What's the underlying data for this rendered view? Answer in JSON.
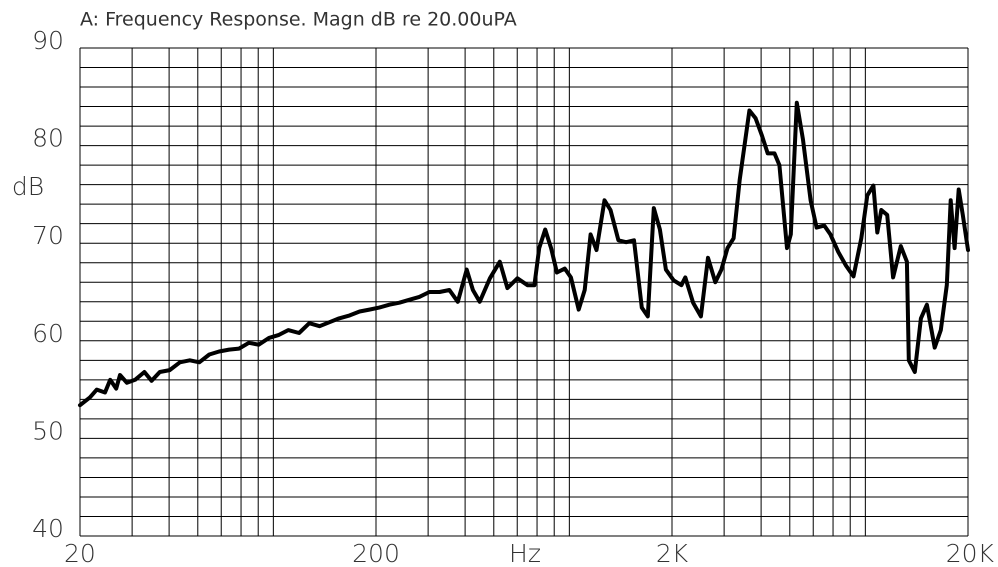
{
  "chart_data": {
    "type": "line",
    "title": "A: Frequency Response. Magn dB re 20.00uPA",
    "xlabel": "Hz",
    "ylabel": "dB",
    "log_x": true,
    "grid": true,
    "color": "#000000",
    "xlim": [
      20,
      20000
    ],
    "xticks": [
      20,
      200,
      {
        "value": 2000,
        "label": "2K"
      },
      {
        "value": 20000,
        "label": "20K"
      }
    ],
    "xminorticks": [
      30,
      40,
      50,
      60,
      70,
      80,
      90,
      300,
      400,
      500,
      600,
      700,
      800,
      900,
      3000,
      4000,
      5000,
      6000,
      7000,
      8000,
      9000
    ],
    "ylim": [
      40,
      90
    ],
    "yticks": [
      40,
      50,
      60,
      70,
      80,
      90
    ],
    "yminorticks": [
      42,
      44,
      46,
      48,
      52,
      54,
      56,
      58,
      62,
      64,
      66,
      68,
      72,
      74,
      76,
      78,
      82,
      84,
      86,
      88
    ],
    "x": [
      20,
      21.6,
      22.8,
      24.3,
      25.3,
      26.5,
      27.3,
      28.8,
      30.7,
      33.0,
      34.9,
      37.2,
      40.2,
      43.5,
      47.0,
      50.6,
      54.7,
      59.0,
      63.8,
      68.9,
      74.4,
      80.3,
      87,
      94,
      101,
      110,
      119,
      129,
      139,
      150,
      163,
      176,
      190,
      205,
      222,
      240,
      259,
      280,
      303,
      328,
      354,
      378,
      405,
      425,
      448,
      485,
      524,
      556,
      601,
      650,
      686,
      712,
      746,
      781,
      817,
      869,
      911,
      968,
      1014,
      1062,
      1112,
      1183,
      1240,
      1318,
      1400,
      1488,
      1581,
      1657,
      1736,
      1820,
      1907,
      2025,
      2151,
      2218,
      2357,
      2504,
      2646,
      2800,
      2937,
      3080,
      3230,
      3387,
      3653,
      3832,
      4017,
      4212,
      4438,
      4610,
      4894,
      5040,
      5280,
      5539,
      5880,
      6160,
      6540,
      6860,
      7290,
      7740,
      8210,
      8720,
      9140,
      9580,
      9880,
      10190,
      10670,
      11170,
      11860,
      12430,
      12620,
      13220,
      13860,
      14530,
      15440,
      16180,
      16960,
      17480,
      18020,
      18600,
      19200,
      20000
    ],
    "series": [
      {
        "name": "A",
        "color": "#000000",
        "values": [
          53.4,
          54.2,
          55.0,
          54.7,
          56.0,
          55.1,
          56.5,
          55.7,
          56.0,
          56.8,
          55.9,
          56.8,
          57.0,
          57.8,
          58.0,
          57.8,
          58.6,
          58.9,
          59.1,
          59.2,
          59.8,
          59.6,
          60.3,
          60.6,
          61.1,
          60.8,
          61.8,
          61.5,
          61.9,
          62.3,
          62.6,
          63.0,
          63.2,
          63.4,
          63.7,
          63.9,
          64.2,
          64.5,
          65.0,
          65.0,
          65.2,
          64.0,
          67.3,
          65.2,
          64.0,
          66.4,
          68.1,
          65.4,
          66.4,
          65.7,
          65.7,
          69.5,
          71.4,
          69.5,
          67.0,
          67.4,
          66.5,
          63.2,
          65.2,
          70.9,
          69.3,
          74.4,
          73.4,
          70.3,
          70.1,
          70.3,
          63.4,
          62.5,
          73.6,
          71.4,
          67.3,
          66.2,
          65.7,
          66.5,
          63.9,
          62.5,
          68.5,
          66.0,
          67.3,
          69.5,
          70.5,
          76.5,
          83.6,
          82.8,
          81.1,
          79.2,
          79.2,
          78.0,
          69.5,
          70.9,
          84.4,
          80.6,
          74.4,
          71.6,
          71.8,
          70.9,
          69.1,
          67.7,
          66.6,
          70.5,
          74.9,
          75.9,
          71.1,
          73.4,
          72.9,
          66.5,
          69.7,
          68.1,
          58.0,
          56.8,
          62.3,
          63.7,
          59.3,
          61.1,
          65.7,
          74.4,
          69.5,
          75.5,
          72.9,
          69.3
        ]
      }
    ]
  }
}
